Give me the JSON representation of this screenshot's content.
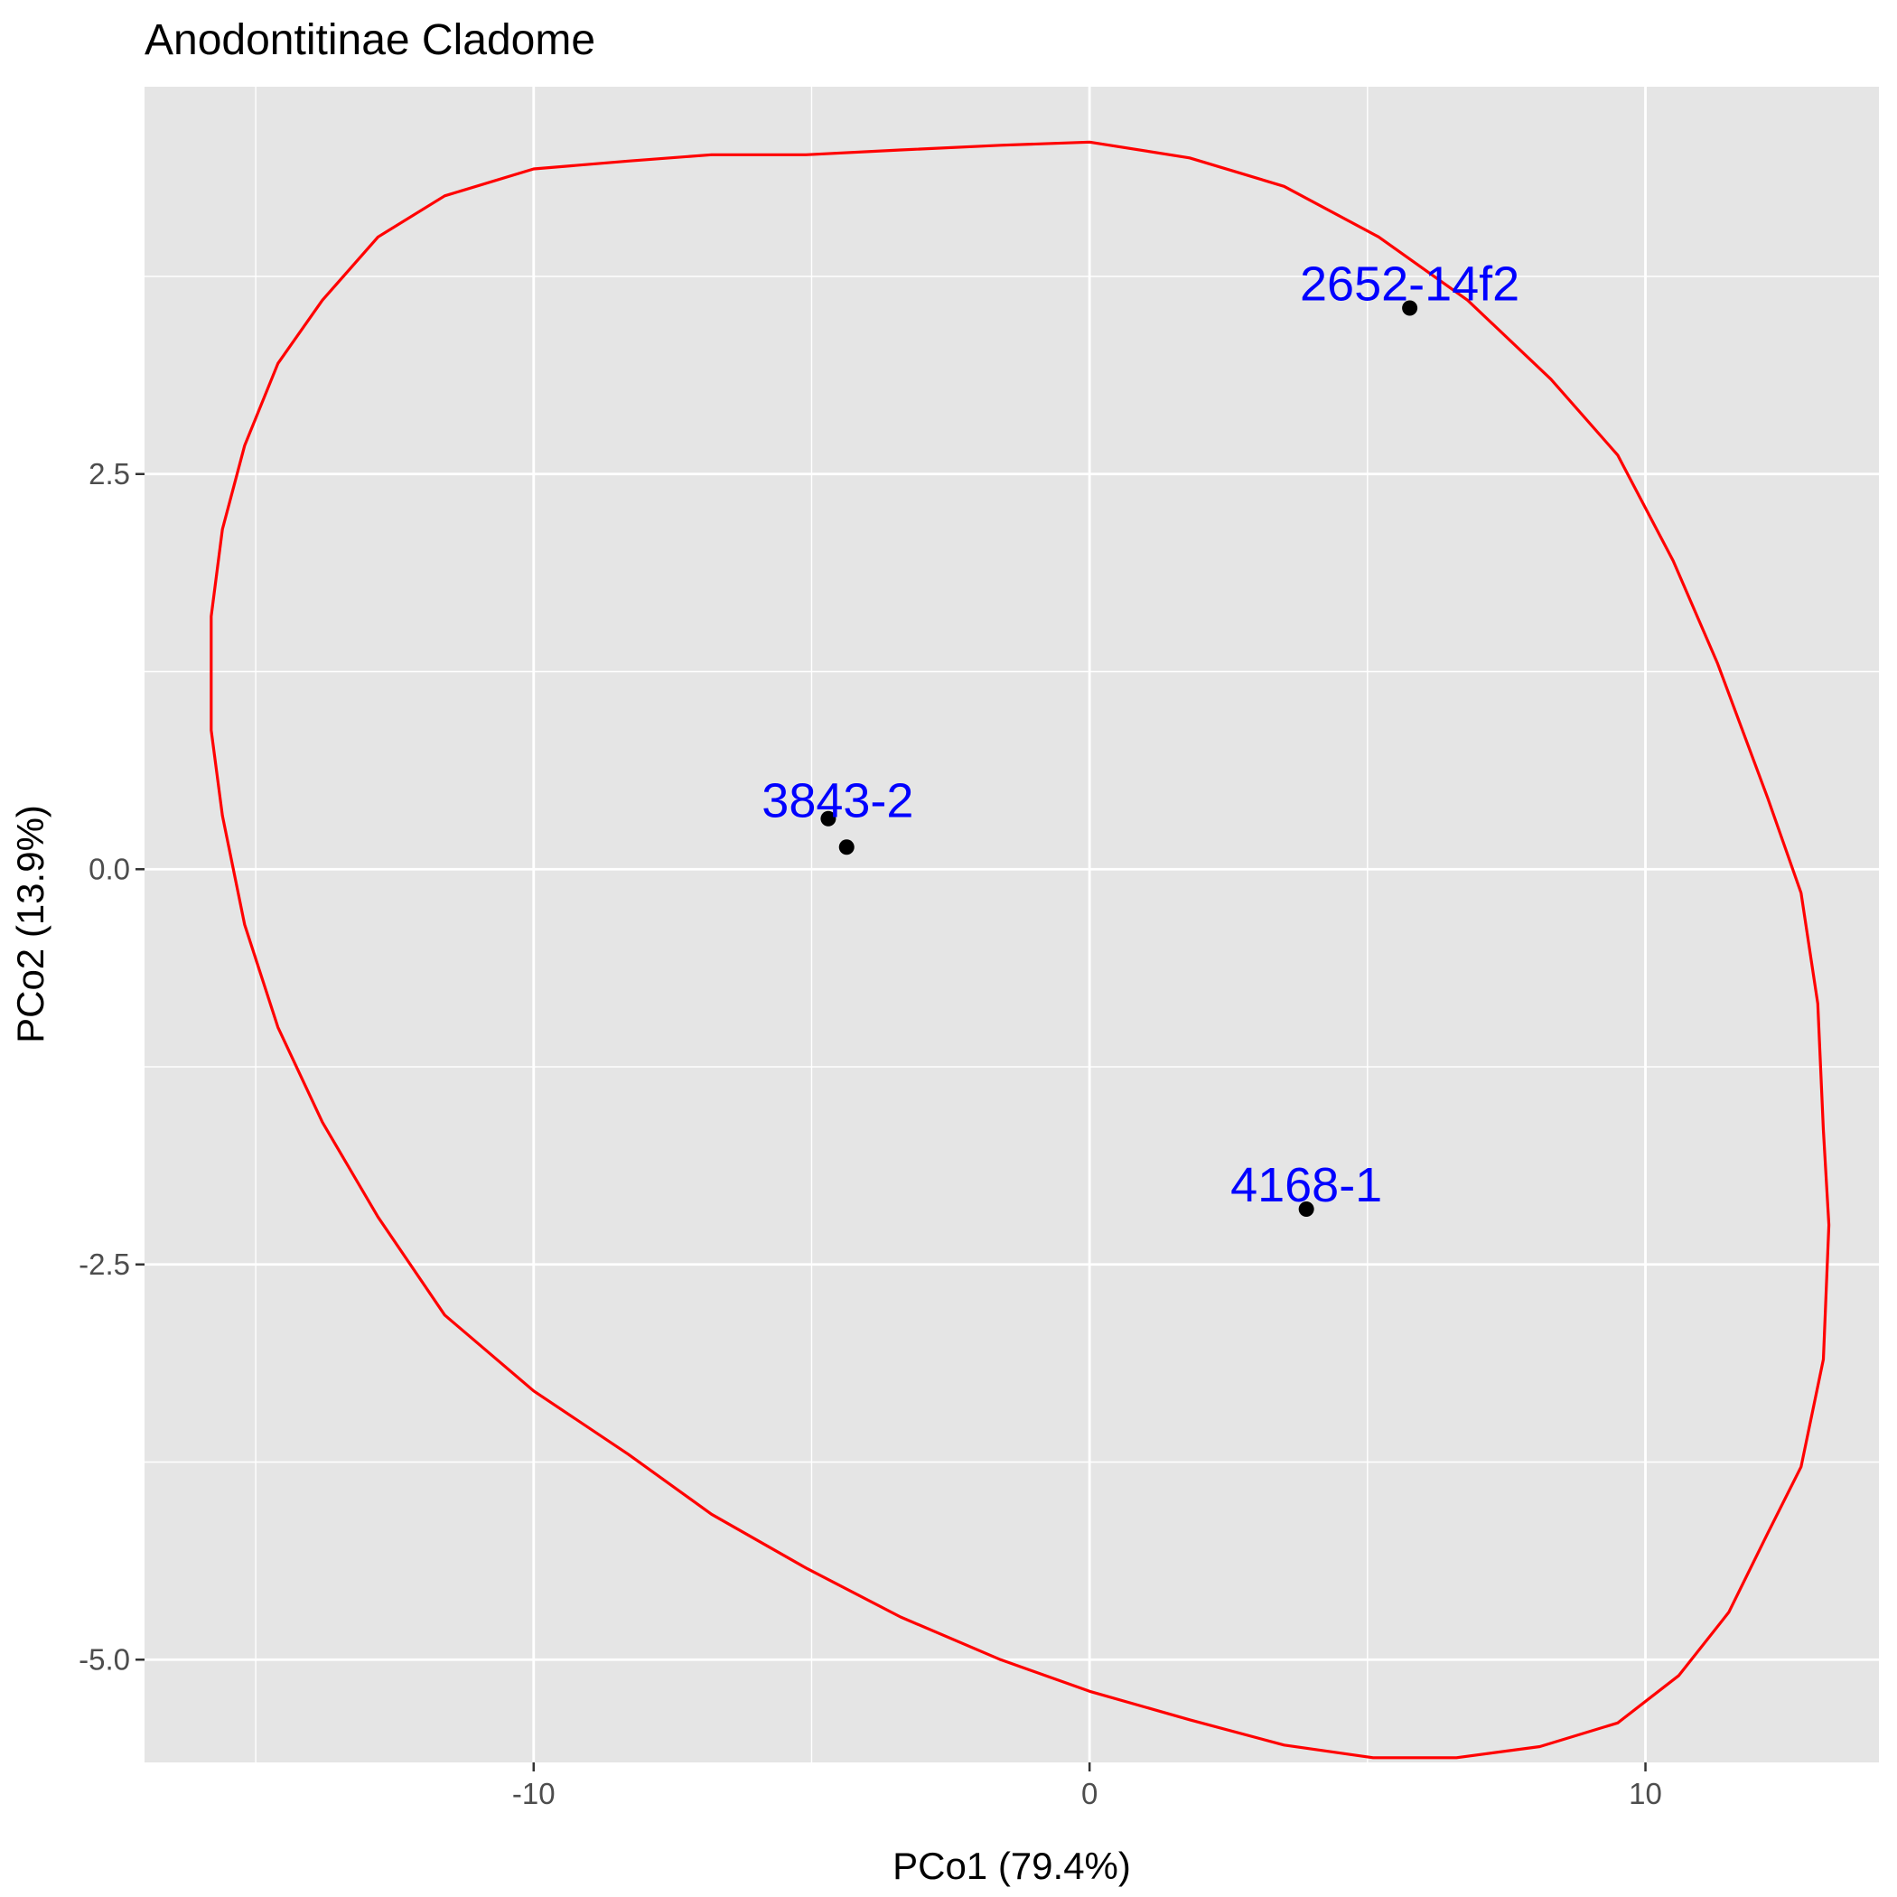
{
  "chart_data": {
    "type": "scatter",
    "title": "Anodontitinae Cladome",
    "xlabel": "PCo1 (79.4%)",
    "ylabel": "PCo2 (13.9%)",
    "xlim": [
      -17,
      14.2
    ],
    "ylim": [
      -5.65,
      4.95
    ],
    "x_ticks": [
      -10,
      0,
      10
    ],
    "x_tick_labels": [
      "-10",
      "0",
      "10"
    ],
    "y_ticks": [
      -5,
      -2.5,
      0,
      2.5
    ],
    "y_tick_labels": [
      "-5.0",
      "-2.5",
      "0.0",
      "2.5"
    ],
    "grid": true,
    "panel_background": "#e5e5e5",
    "grid_color": "#ffffff",
    "point_color": "#000000",
    "label_color": "#0000ff",
    "ellipse_color": "#ff0000",
    "points": [
      {
        "x": -4.7,
        "y": 0.32
      },
      {
        "x": -4.37,
        "y": 0.14
      },
      {
        "x": 3.9,
        "y": -2.15
      },
      {
        "x": 5.76,
        "y": 3.55
      }
    ],
    "labels": [
      {
        "text": "3843-2",
        "x": -4.53,
        "y": 0.33
      },
      {
        "text": "4168-1",
        "x": 3.9,
        "y": -2.1
      },
      {
        "text": "2652-14f2",
        "x": 5.76,
        "y": 3.6
      }
    ],
    "ellipse": [
      [
        -8.3,
        4.48
      ],
      [
        -10.0,
        4.43
      ],
      [
        -11.6,
        4.26
      ],
      [
        -12.8,
        4.0
      ],
      [
        -13.8,
        3.6
      ],
      [
        -14.6,
        3.2
      ],
      [
        -15.2,
        2.68
      ],
      [
        -15.6,
        2.15
      ],
      [
        -15.8,
        1.6
      ],
      [
        -15.8,
        0.88
      ],
      [
        -15.6,
        0.34
      ],
      [
        -15.2,
        -0.35
      ],
      [
        -14.6,
        -1.0
      ],
      [
        -13.8,
        -1.6
      ],
      [
        -12.8,
        -2.2
      ],
      [
        -11.6,
        -2.82
      ],
      [
        -10.0,
        -3.3
      ],
      [
        -8.3,
        -3.7
      ],
      [
        -6.8,
        -4.08
      ],
      [
        -5.1,
        -4.42
      ],
      [
        -3.4,
        -4.73
      ],
      [
        -1.6,
        -5.0
      ],
      [
        0.0,
        -5.2
      ],
      [
        1.8,
        -5.38
      ],
      [
        3.5,
        -5.54
      ],
      [
        5.1,
        -5.62
      ],
      [
        6.6,
        -5.62
      ],
      [
        8.1,
        -5.55
      ],
      [
        9.5,
        -5.4
      ],
      [
        10.6,
        -5.1
      ],
      [
        11.5,
        -4.7
      ],
      [
        12.2,
        -4.2
      ],
      [
        12.8,
        -3.78
      ],
      [
        13.2,
        -3.1
      ],
      [
        13.3,
        -2.25
      ],
      [
        13.2,
        -1.65
      ],
      [
        13.1,
        -0.85
      ],
      [
        12.8,
        -0.15
      ],
      [
        12.2,
        0.45
      ],
      [
        11.3,
        1.3
      ],
      [
        10.5,
        1.95
      ],
      [
        9.5,
        2.62
      ],
      [
        8.3,
        3.1
      ],
      [
        6.8,
        3.6
      ],
      [
        5.2,
        4.0
      ],
      [
        3.5,
        4.32
      ],
      [
        1.8,
        4.5
      ],
      [
        0.0,
        4.6
      ],
      [
        -1.6,
        4.58
      ],
      [
        -3.4,
        4.55
      ],
      [
        -5.1,
        4.52
      ],
      [
        -6.8,
        4.52
      ],
      [
        -8.3,
        4.48
      ]
    ]
  }
}
